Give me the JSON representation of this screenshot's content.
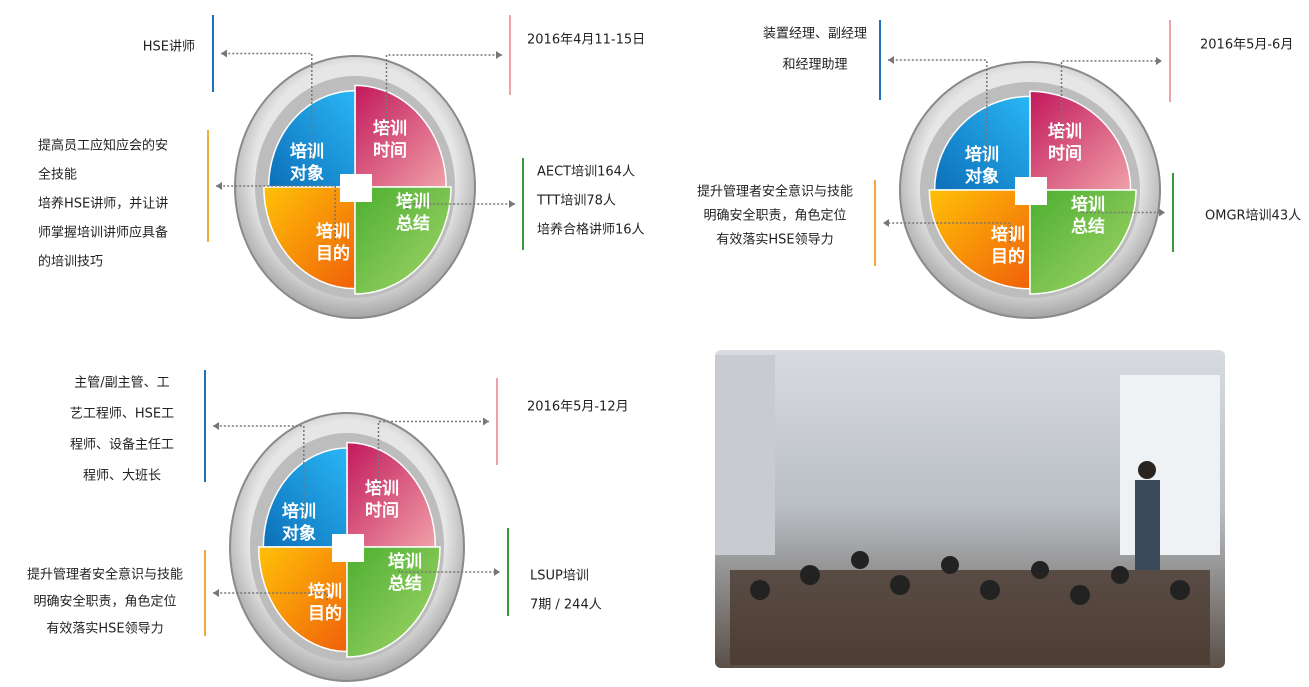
{
  "diagrams": [
    {
      "quadrants": {
        "target": [
          "培训",
          "对象"
        ],
        "time": [
          "培训",
          "时间"
        ],
        "purpose": [
          "培训",
          "目的"
        ],
        "summary": [
          "培训",
          "总结"
        ]
      },
      "annotations": {
        "target": [
          "HSE讲师"
        ],
        "time": [
          "2016年4月11-15日"
        ],
        "purpose": [
          "提高员工应知应会的安",
          "全技能",
          "培养HSE讲师，并让讲",
          "师掌握培训讲师应具备",
          "的培训技巧"
        ],
        "summary": [
          "AECT培训164人",
          "TTT培训78人",
          "培养合格讲师16人"
        ]
      }
    },
    {
      "quadrants": {
        "target": [
          "培训",
          "对象"
        ],
        "time": [
          "培训",
          "时间"
        ],
        "purpose": [
          "培训",
          "目的"
        ],
        "summary": [
          "培训",
          "总结"
        ]
      },
      "annotations": {
        "target": [
          "装置经理、副经理",
          "和经理助理"
        ],
        "time": [
          "2016年5月-6月"
        ],
        "purpose": [
          "提升管理者安全意识与技能",
          "明确安全职责，角色定位",
          "有效落实HSE领导力"
        ],
        "summary": [
          "OMGR培训43人"
        ]
      }
    },
    {
      "quadrants": {
        "target": [
          "培训",
          "对象"
        ],
        "time": [
          "培训",
          "时间"
        ],
        "purpose": [
          "培训",
          "目的"
        ],
        "summary": [
          "培训",
          "总结"
        ]
      },
      "annotations": {
        "target": [
          "主管/副主管、工",
          "艺工程师、HSE工",
          "程师、设备主任工",
          "程师、大班长"
        ],
        "time": [
          "2016年5月-12月"
        ],
        "purpose": [
          "提升管理者安全意识与技能",
          "明确安全职责，角色定位",
          "有效落实HSE领导力"
        ],
        "summary": [
          "LSUP培训",
          "7期 / 244人"
        ]
      }
    }
  ]
}
